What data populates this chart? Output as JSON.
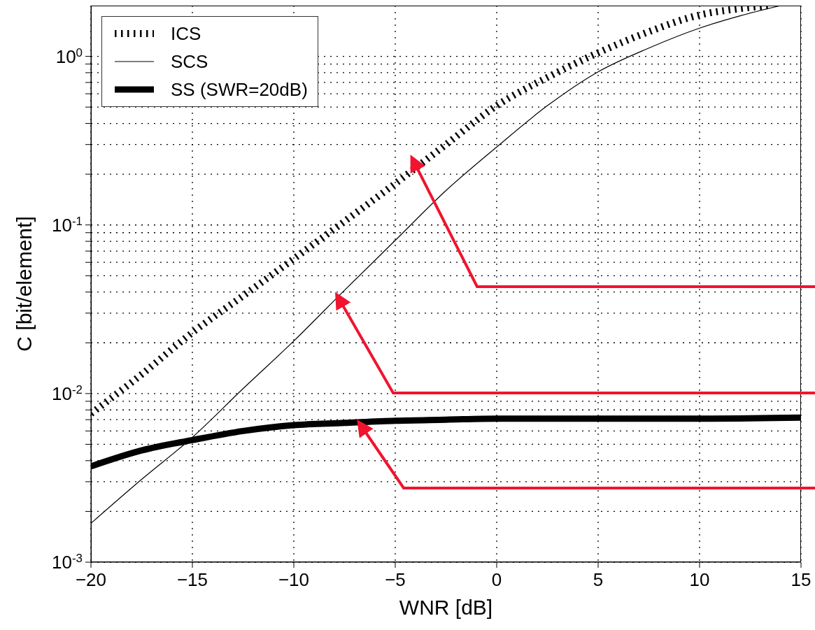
{
  "chart_data": {
    "type": "line",
    "xlabel": "WNR [dB]",
    "ylabel": "C [bit/element]",
    "log": "y",
    "grid": true,
    "legend": "top left",
    "marker": "none",
    "xlim": [
      -20,
      15
    ],
    "xticks": [
      {
        "value": -20,
        "label": "−20"
      },
      {
        "value": -15,
        "label": "−15"
      },
      {
        "value": -10,
        "label": "−10"
      },
      {
        "value": -5,
        "label": "−5"
      },
      0,
      5,
      10,
      15
    ],
    "ylim": [
      0.001,
      2
    ],
    "yticks": [
      {
        "value": 0.001,
        "label": "10$^{-3}$"
      },
      {
        "value": 0.002,
        "label": null
      },
      {
        "value": 0.003,
        "label": null
      },
      {
        "value": 0.004,
        "label": null
      },
      {
        "value": 0.005,
        "label": null
      },
      {
        "value": 0.006,
        "label": null
      },
      {
        "value": 0.007,
        "label": null
      },
      {
        "value": 0.008,
        "label": null
      },
      {
        "value": 0.009,
        "label": null
      },
      {
        "value": 0.01,
        "label": "10$^{-2}$"
      },
      {
        "value": 0.02,
        "label": null
      },
      {
        "value": 0.03,
        "label": null
      },
      {
        "value": 0.04,
        "label": null
      },
      {
        "value": 0.05,
        "label": null
      },
      {
        "value": 0.06,
        "label": null
      },
      {
        "value": 0.07,
        "label": null
      },
      {
        "value": 0.08,
        "label": null
      },
      {
        "value": 0.09,
        "label": null
      },
      {
        "value": 0.1,
        "label": "10$^{-1}$"
      },
      {
        "value": 0.2,
        "label": null
      },
      {
        "value": 0.3,
        "label": null
      },
      {
        "value": 0.4,
        "label": null
      },
      {
        "value": 0.5,
        "label": null
      },
      {
        "value": 0.6,
        "label": null
      },
      {
        "value": 0.7,
        "label": null
      },
      {
        "value": 0.8,
        "label": null
      },
      {
        "value": 0.9,
        "label": null
      },
      {
        "value": 1,
        "label": "10$^{0}$"
      }
    ],
    "series": [
      {
        "name": "ICS",
        "color": "#000000",
        "line_style": "dotted",
        "x": [
          -20,
          -17.5,
          -15,
          -12.5,
          -10,
          -7.5,
          -5,
          -2.5,
          0,
          2.5,
          5,
          7.5,
          10,
          12,
          13.4
        ],
        "values": [
          0.0076,
          0.013,
          0.023,
          0.038,
          0.063,
          0.105,
          0.176,
          0.3,
          0.51,
          0.75,
          1.05,
          1.4,
          1.76,
          1.92,
          2.0
        ]
      },
      {
        "name": "SCS",
        "color": "#000000",
        "line_style": "solid",
        "x": [
          -20,
          -17.5,
          -15,
          -12.5,
          -10,
          -7.5,
          -5,
          -2.5,
          0,
          2.5,
          5,
          7.5,
          10,
          12,
          14
        ],
        "values": [
          0.0017,
          0.0031,
          0.0055,
          0.0107,
          0.0205,
          0.041,
          0.081,
          0.16,
          0.29,
          0.51,
          0.81,
          1.12,
          1.47,
          1.74,
          2.0
        ]
      },
      {
        "name": "SS (SWR=20dB)",
        "color": "#000000",
        "line_style": "solid",
        "x": [
          -20,
          -17.5,
          -15,
          -12.5,
          -10,
          -7.5,
          -5,
          -2.5,
          0,
          5,
          10,
          15
        ],
        "values": [
          0.0037,
          0.0046,
          0.0053,
          0.006,
          0.0065,
          0.0067,
          0.0069,
          0.007,
          0.0071,
          0.0071,
          0.0071,
          0.0072
        ]
      }
    ]
  }
}
